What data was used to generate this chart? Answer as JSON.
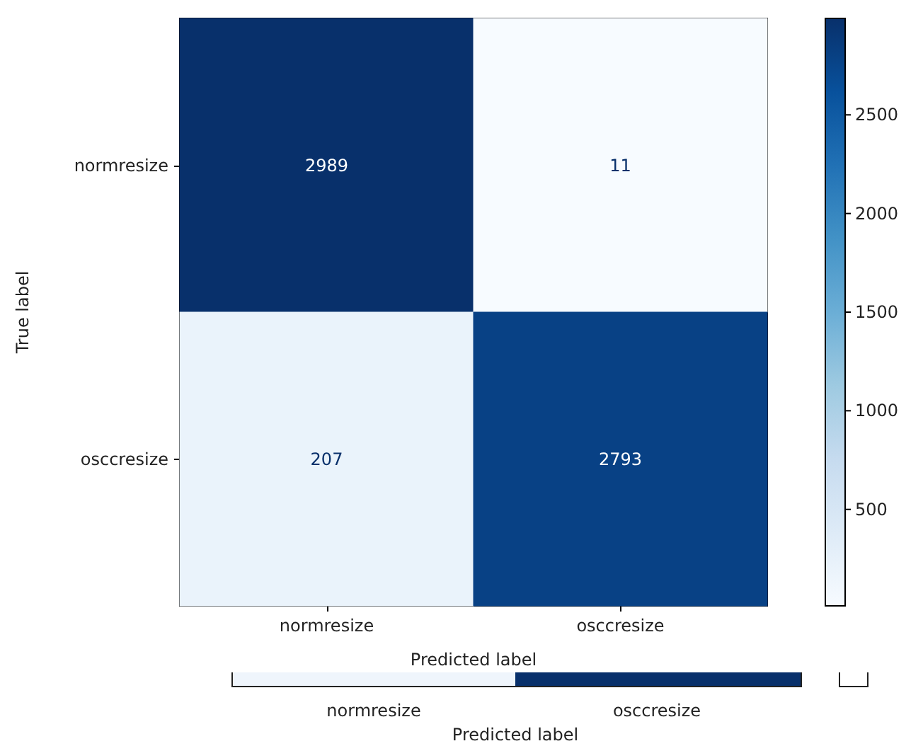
{
  "chart_data": {
    "type": "heatmap",
    "categories": [
      "normresize",
      "osccresize"
    ],
    "y_categories": [
      "normresize",
      "osccresize"
    ],
    "cells": [
      [
        2989,
        11
      ],
      [
        207,
        2793
      ]
    ],
    "data_labels": true,
    "xlabel": "Predicted label",
    "ylabel": "True label",
    "clim": [
      11,
      2989
    ],
    "cticks": [
      500,
      1000,
      1500,
      2000,
      2500
    ],
    "annotations": [
      "normresize",
      "osccresize",
      "Predicted label"
    ]
  }
}
